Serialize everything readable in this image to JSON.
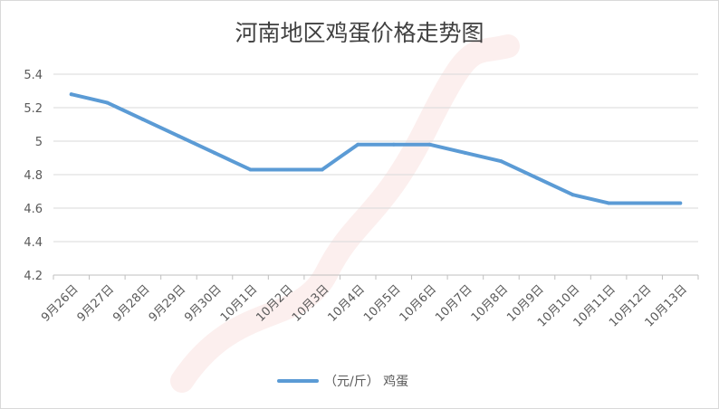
{
  "chart_data": {
    "type": "line",
    "title": "河南地区鸡蛋价格走势图",
    "categories": [
      "9月26日",
      "9月27日",
      "9月28日",
      "9月29日",
      "9月30日",
      "10月1日",
      "10月2日",
      "10月3日",
      "10月4日",
      "10月5日",
      "10月6日",
      "10月7日",
      "10月8日",
      "10月9日",
      "10月10日",
      "10月11日",
      "10月12日",
      "10月13日"
    ],
    "series": [
      {
        "name": "（元/斤） 鸡蛋",
        "color": "#5b9bd5",
        "values": [
          5.28,
          5.23,
          5.13,
          5.03,
          4.93,
          4.83,
          4.83,
          4.83,
          4.98,
          4.98,
          4.98,
          4.93,
          4.88,
          4.78,
          4.68,
          4.63,
          4.63,
          4.63
        ]
      }
    ],
    "ylim": [
      4.2,
      5.4
    ],
    "yticks": [
      "5.4",
      "5.2",
      "5",
      "4.8",
      "4.6",
      "4.4",
      "4.2"
    ],
    "grid": true,
    "legend": "bottom"
  }
}
